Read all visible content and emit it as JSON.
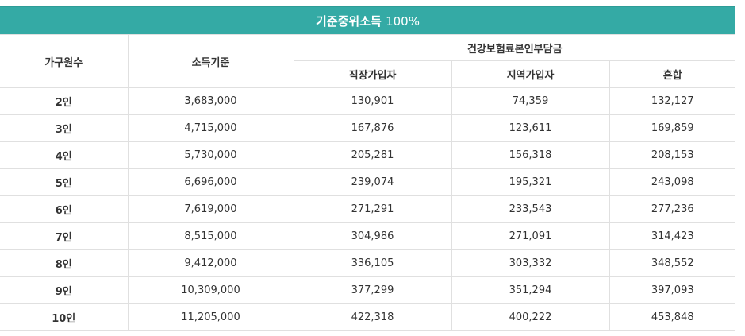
{
  "table": {
    "title": "기준중위소득",
    "title_pct": "100%",
    "headers": {
      "household": "가구원수",
      "income_standard": "소득기준",
      "group": "건강보험료본인부담금",
      "sub": [
        "직장가입자",
        "지역가입자",
        "혼합"
      ]
    },
    "rows": [
      {
        "size": "2인",
        "income": "3,683,000",
        "employee": "130,901",
        "regional": "74,359",
        "mixed": "132,127"
      },
      {
        "size": "3인",
        "income": "4,715,000",
        "employee": "167,876",
        "regional": "123,611",
        "mixed": "169,859"
      },
      {
        "size": "4인",
        "income": "5,730,000",
        "employee": "205,281",
        "regional": "156,318",
        "mixed": "208,153"
      },
      {
        "size": "5인",
        "income": "6,696,000",
        "employee": "239,074",
        "regional": "195,321",
        "mixed": "243,098"
      },
      {
        "size": "6인",
        "income": "7,619,000",
        "employee": "271,291",
        "regional": "233,543",
        "mixed": "277,236"
      },
      {
        "size": "7인",
        "income": "8,515,000",
        "employee": "304,986",
        "regional": "271,091",
        "mixed": "314,423"
      },
      {
        "size": "8인",
        "income": "9,412,000",
        "employee": "336,105",
        "regional": "303,332",
        "mixed": "348,552"
      },
      {
        "size": "9인",
        "income": "10,309,000",
        "employee": "377,299",
        "regional": "351,294",
        "mixed": "397,093"
      },
      {
        "size": "10인",
        "income": "11,205,000",
        "employee": "422,318",
        "regional": "400,222",
        "mixed": "453,848"
      }
    ]
  }
}
